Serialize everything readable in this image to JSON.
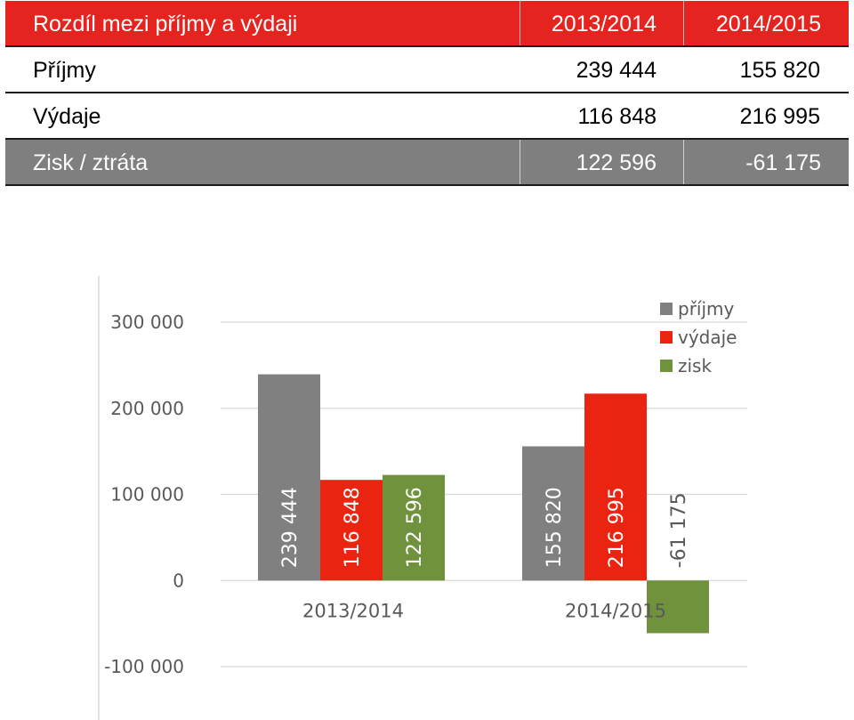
{
  "table": {
    "header": {
      "label": "Rozdíl mezi příjmy a výdaji",
      "c1": "2013/2014",
      "c2": "2014/2015"
    },
    "rows": [
      {
        "label": "Příjmy",
        "c1": "239 444",
        "c2": "155 820"
      },
      {
        "label": "Výdaje",
        "c1": "116 848",
        "c2": "216 995"
      }
    ],
    "footer": {
      "label": "Zisk / ztráta",
      "c1": "122 596",
      "c2": "-61 175"
    },
    "colors": {
      "header_bg": "#e52420",
      "footer_bg": "#7f7f7f"
    }
  },
  "chart_data": {
    "type": "bar",
    "categories": [
      "2013/2014",
      "2014/2015"
    ],
    "series": [
      {
        "name": "příjmy",
        "color": "#808080",
        "values": [
          239444,
          155820
        ],
        "labels": [
          "239 444",
          "155 820"
        ]
      },
      {
        "name": "výdaje",
        "color": "#ea2410",
        "values": [
          116848,
          216995
        ],
        "labels": [
          "116 848",
          "216 995"
        ]
      },
      {
        "name": "zisk",
        "color": "#70923c",
        "values": [
          122596,
          -61175
        ],
        "labels": [
          "122 596",
          "-61 175"
        ]
      }
    ],
    "ylim": [
      -100000,
      300000
    ],
    "yticks": [
      300000,
      200000,
      100000,
      0,
      -100000
    ],
    "ytick_labels": [
      "300 000",
      "200 000",
      "100 000",
      "0",
      "-100 000"
    ],
    "grid": true,
    "legend_position": "top-right"
  }
}
